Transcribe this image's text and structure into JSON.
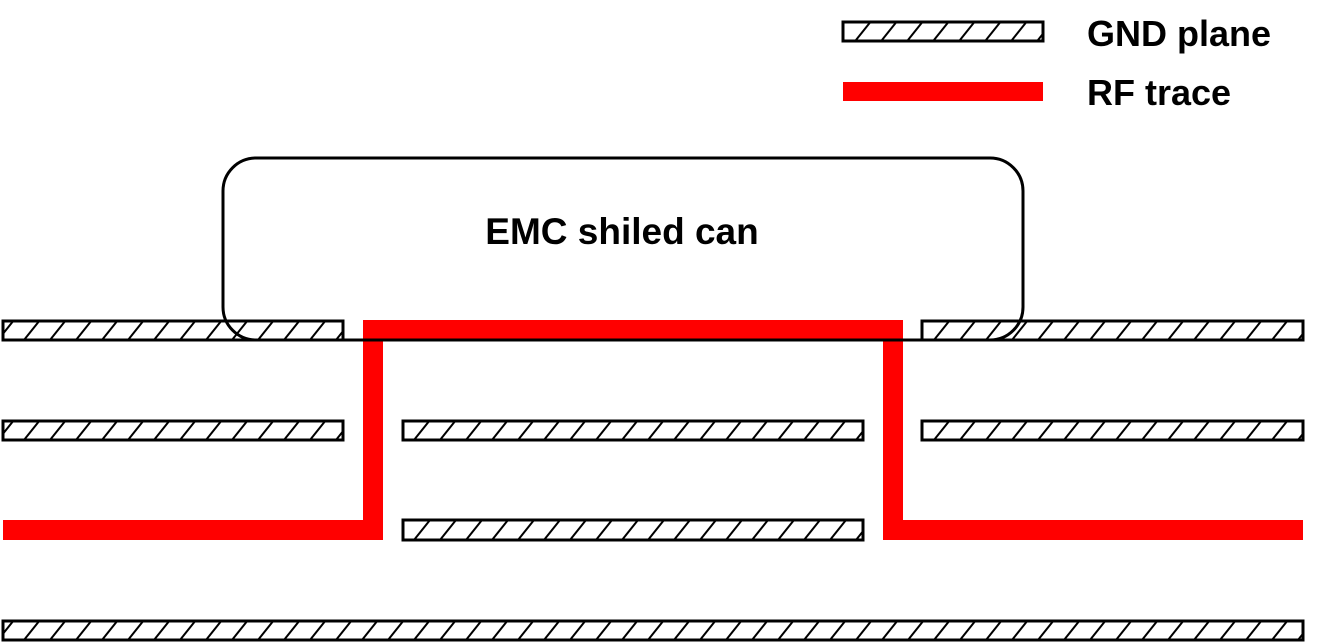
{
  "legend": {
    "gnd_label": "GND plane",
    "rf_label": "RF trace"
  },
  "shield": {
    "label": "EMC shiled can"
  },
  "colors": {
    "rf_trace": "#ff0000",
    "outline": "#000000",
    "background": "#ffffff"
  },
  "layers": {
    "gnd_planes": [
      {
        "name": "top-layer-left"
      },
      {
        "name": "top-layer-right"
      },
      {
        "name": "layer2-left"
      },
      {
        "name": "layer2-center"
      },
      {
        "name": "layer2-right"
      },
      {
        "name": "layer3-center"
      },
      {
        "name": "bottom-layer"
      }
    ]
  }
}
